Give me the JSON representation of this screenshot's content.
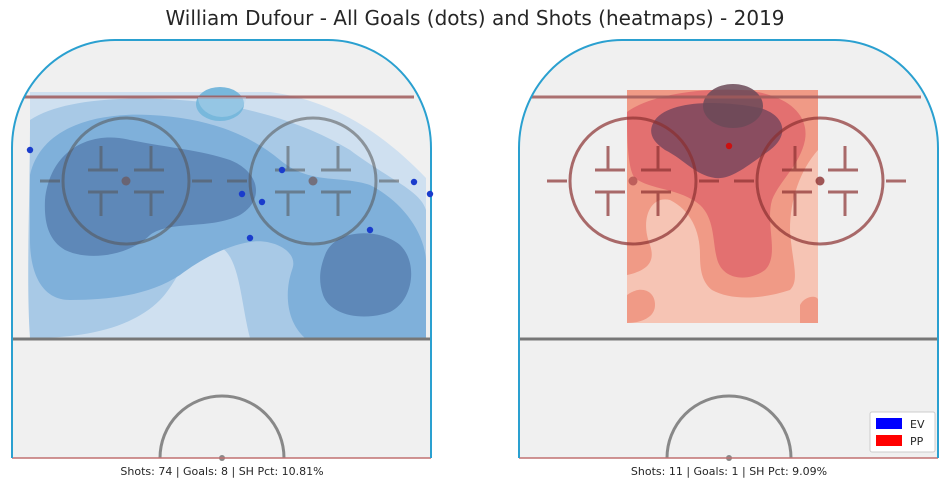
{
  "title": "William Dufour - All Goals (dots) and Shots (heatmaps) - 2019",
  "colors": {
    "ev": "#0000ff",
    "pp": "#ff0000",
    "ice": "#f0f0f0",
    "boards": "#2aa0d0",
    "blue_line": "#777777",
    "goal_line": "#a05a5a",
    "ev_heat": [
      "#cfe0f0",
      "#a8c9e6",
      "#7fb0da",
      "#5e88b8"
    ],
    "pp_heat": [
      "#f6c4b4",
      "#f09a86",
      "#e37070",
      "#8a4d60"
    ]
  },
  "chart_data": [
    {
      "type": "heatmap",
      "panel": "EV",
      "stats_text": "Shots: 74 | Goals: 8 | SH Pct: 10.81%",
      "shots": 74,
      "goals": 8,
      "sh_pct": 10.81,
      "goal_points": [
        {
          "x": -48,
          "y": 77
        },
        {
          "x": 15,
          "y": 72
        },
        {
          "x": 5,
          "y": 66
        },
        {
          "x": 10,
          "y": 64
        },
        {
          "x": 48,
          "y": 69
        },
        {
          "x": 52,
          "y": 66
        },
        {
          "x": 37,
          "y": 57
        },
        {
          "x": 7,
          "y": 55
        }
      ]
    },
    {
      "type": "heatmap",
      "panel": "PP",
      "stats_text": "Shots: 11 | Goals: 1 | SH Pct: 9.09%",
      "shots": 11,
      "goals": 1,
      "sh_pct": 9.09,
      "goal_points": [
        {
          "x": 0,
          "y": 78
        }
      ]
    }
  ],
  "legend": {
    "placement": "bottom-right",
    "items": [
      {
        "label": "EV",
        "color": "#0000ff"
      },
      {
        "label": "PP",
        "color": "#ff0000"
      }
    ]
  }
}
